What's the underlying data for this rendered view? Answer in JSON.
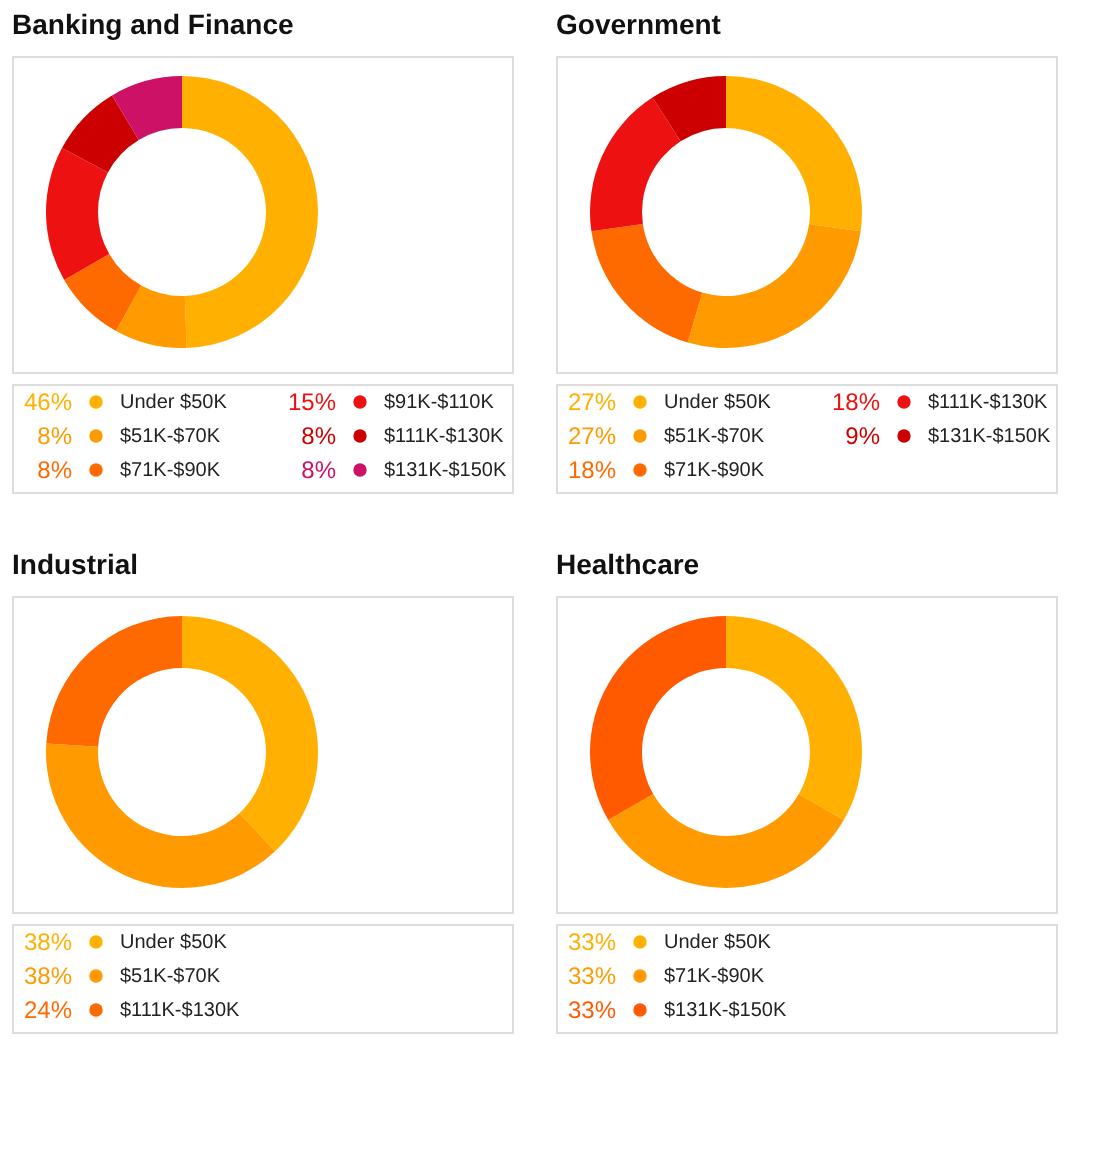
{
  "chart_data": [
    {
      "type": "donut",
      "title": "Banking and Finance",
      "legend": "bottom",
      "categories": [
        "Under $50K",
        "$51K-$70K",
        "$71K-$90K",
        "$91K-$110K",
        "$111K-$130K",
        "$131K-$150K"
      ],
      "values": [
        46,
        8,
        8,
        15,
        8,
        8
      ],
      "value_labels": [
        "46%",
        "8%",
        "8%",
        "15%",
        "8%",
        "8%"
      ],
      "colors": [
        "#ffb000",
        "#ff9a00",
        "#ff6a00",
        "#ee1111",
        "#cc0000",
        "#cc1166"
      ]
    },
    {
      "type": "donut",
      "title": "Government",
      "legend": "bottom",
      "categories": [
        "Under $50K",
        "$51K-$70K",
        "$71K-$90K",
        "$111K-$130K",
        "$131K-$150K"
      ],
      "values": [
        27,
        27,
        18,
        18,
        9
      ],
      "value_labels": [
        "27%",
        "27%",
        "18%",
        "18%",
        "9%"
      ],
      "colors": [
        "#ffb000",
        "#ff9a00",
        "#ff6a00",
        "#ee1111",
        "#cc0000"
      ]
    },
    {
      "type": "donut",
      "title": "Industrial",
      "legend": "bottom",
      "categories": [
        "Under $50K",
        "$51K-$70K",
        "$111K-$130K"
      ],
      "values": [
        38,
        38,
        24
      ],
      "value_labels": [
        "38%",
        "38%",
        "24%"
      ],
      "colors": [
        "#ffb000",
        "#ff9a00",
        "#ff6a00"
      ]
    },
    {
      "type": "donut",
      "title": "Healthcare",
      "legend": "bottom",
      "categories": [
        "Under $50K",
        "$71K-$90K",
        "$131K-$150K"
      ],
      "values": [
        33,
        33,
        33
      ],
      "value_labels": [
        "33%",
        "33%",
        "33%"
      ],
      "colors": [
        "#ffb000",
        "#ff9a00",
        "#ff5a00"
      ]
    }
  ]
}
